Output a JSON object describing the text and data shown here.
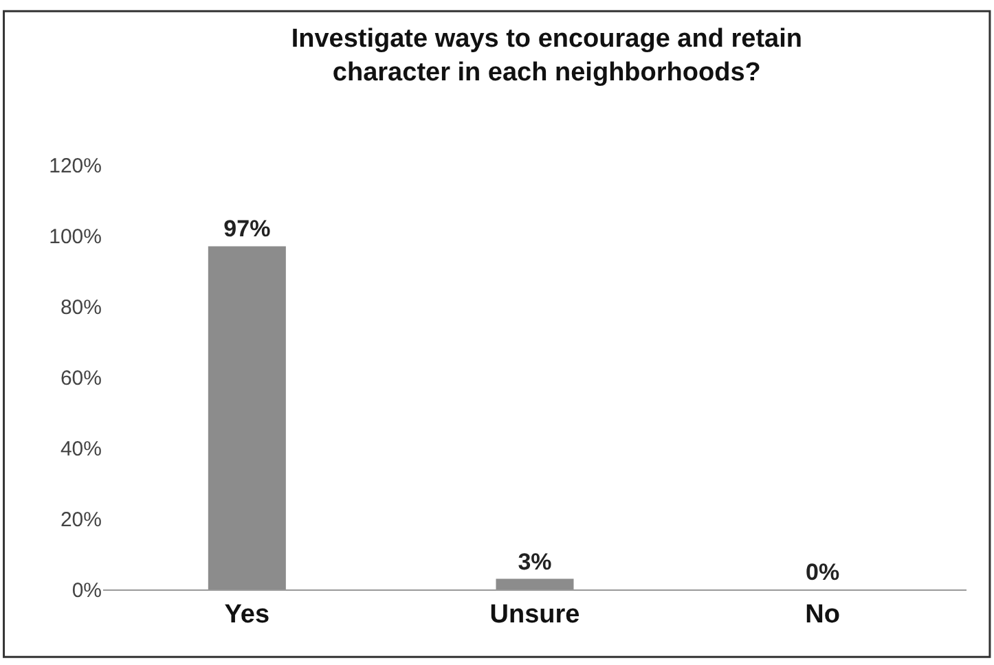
{
  "chart_data": {
    "type": "bar",
    "title": "Investigate ways to encourage and retain character in each neighborhoods?",
    "categories": [
      "Yes",
      "Unsure",
      "No"
    ],
    "values": [
      97,
      3,
      0
    ],
    "value_labels": [
      "97%",
      "3%",
      "0%"
    ],
    "color": "#8c8c8c",
    "ylim": [
      0,
      120
    ],
    "yticks": [
      {
        "value": 0,
        "label": "0%"
      },
      {
        "value": 20,
        "label": "20%"
      },
      {
        "value": 40,
        "label": "40%"
      },
      {
        "value": 60,
        "label": "60%"
      },
      {
        "value": 80,
        "label": "80%"
      },
      {
        "value": 100,
        "label": "100%"
      },
      {
        "value": 120,
        "label": "120%"
      }
    ],
    "legend": false
  }
}
